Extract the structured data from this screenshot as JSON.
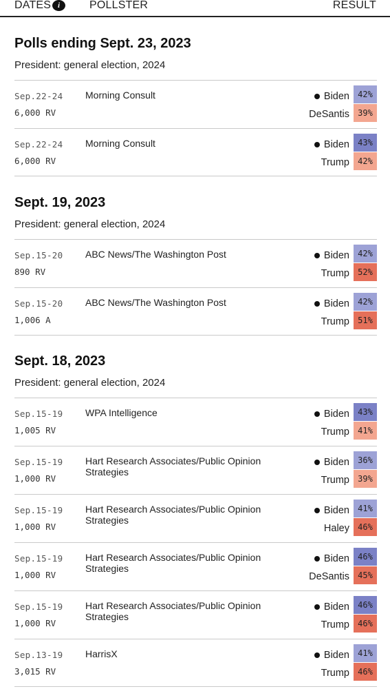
{
  "header": {
    "dates": "DATES",
    "info": "i",
    "pollster": "POLLSTER",
    "result": "RESULT"
  },
  "colors": {
    "dem_light": "#9da2d6",
    "dem_strong": "#7b81c6",
    "rep_light": "#f3a690",
    "rep_strong": "#e5705a"
  },
  "sections": [
    {
      "title": "Polls ending Sept. 23, 2023",
      "subtitle": "President: general election, 2024",
      "polls": [
        {
          "dates": "Sep.22-24",
          "sample": "6,000 RV",
          "pollster": "Morning Consult",
          "candA": "Biden",
          "pctA": "42%",
          "candB": "DeSantis",
          "pctB": "39%"
        },
        {
          "dates": "Sep.22-24",
          "sample": "6,000 RV",
          "pollster": "Morning Consult",
          "candA": "Biden",
          "pctA": "43%",
          "candB": "Trump",
          "pctB": "42%"
        }
      ]
    },
    {
      "title": "Sept. 19, 2023",
      "subtitle": "President: general election, 2024",
      "polls": [
        {
          "dates": "Sep.15-20",
          "sample": "890 RV",
          "pollster": "ABC News/The Washington Post",
          "candA": "Biden",
          "pctA": "42%",
          "candB": "Trump",
          "pctB": "52%"
        },
        {
          "dates": "Sep.15-20",
          "sample": "1,006 A",
          "pollster": "ABC News/The Washington Post",
          "candA": "Biden",
          "pctA": "42%",
          "candB": "Trump",
          "pctB": "51%"
        }
      ]
    },
    {
      "title": "Sept. 18, 2023",
      "subtitle": "President: general election, 2024",
      "polls": [
        {
          "dates": "Sep.15-19",
          "sample": "1,005 RV",
          "pollster": "WPA Intelligence",
          "candA": "Biden",
          "pctA": "43%",
          "candB": "Trump",
          "pctB": "41%"
        },
        {
          "dates": "Sep.15-19",
          "sample": "1,000 RV",
          "pollster": "Hart Research Associates/Public Opinion Strategies",
          "candA": "Biden",
          "pctA": "36%",
          "candB": "Trump",
          "pctB": "39%"
        },
        {
          "dates": "Sep.15-19",
          "sample": "1,000 RV",
          "pollster": "Hart Research Associates/Public Opinion Strategies",
          "candA": "Biden",
          "pctA": "41%",
          "candB": "Haley",
          "pctB": "46%"
        },
        {
          "dates": "Sep.15-19",
          "sample": "1,000 RV",
          "pollster": "Hart Research Associates/Public Opinion Strategies",
          "candA": "Biden",
          "pctA": "46%",
          "candB": "DeSantis",
          "pctB": "45%"
        },
        {
          "dates": "Sep.15-19",
          "sample": "1,000 RV",
          "pollster": "Hart Research Associates/Public Opinion Strategies",
          "candA": "Biden",
          "pctA": "46%",
          "candB": "Trump",
          "pctB": "46%"
        },
        {
          "dates": "Sep.13-19",
          "sample": "3,015 RV",
          "pollster": "HarrisX",
          "candA": "Biden",
          "pctA": "41%",
          "candB": "Trump",
          "pctB": "46%"
        }
      ]
    }
  ]
}
